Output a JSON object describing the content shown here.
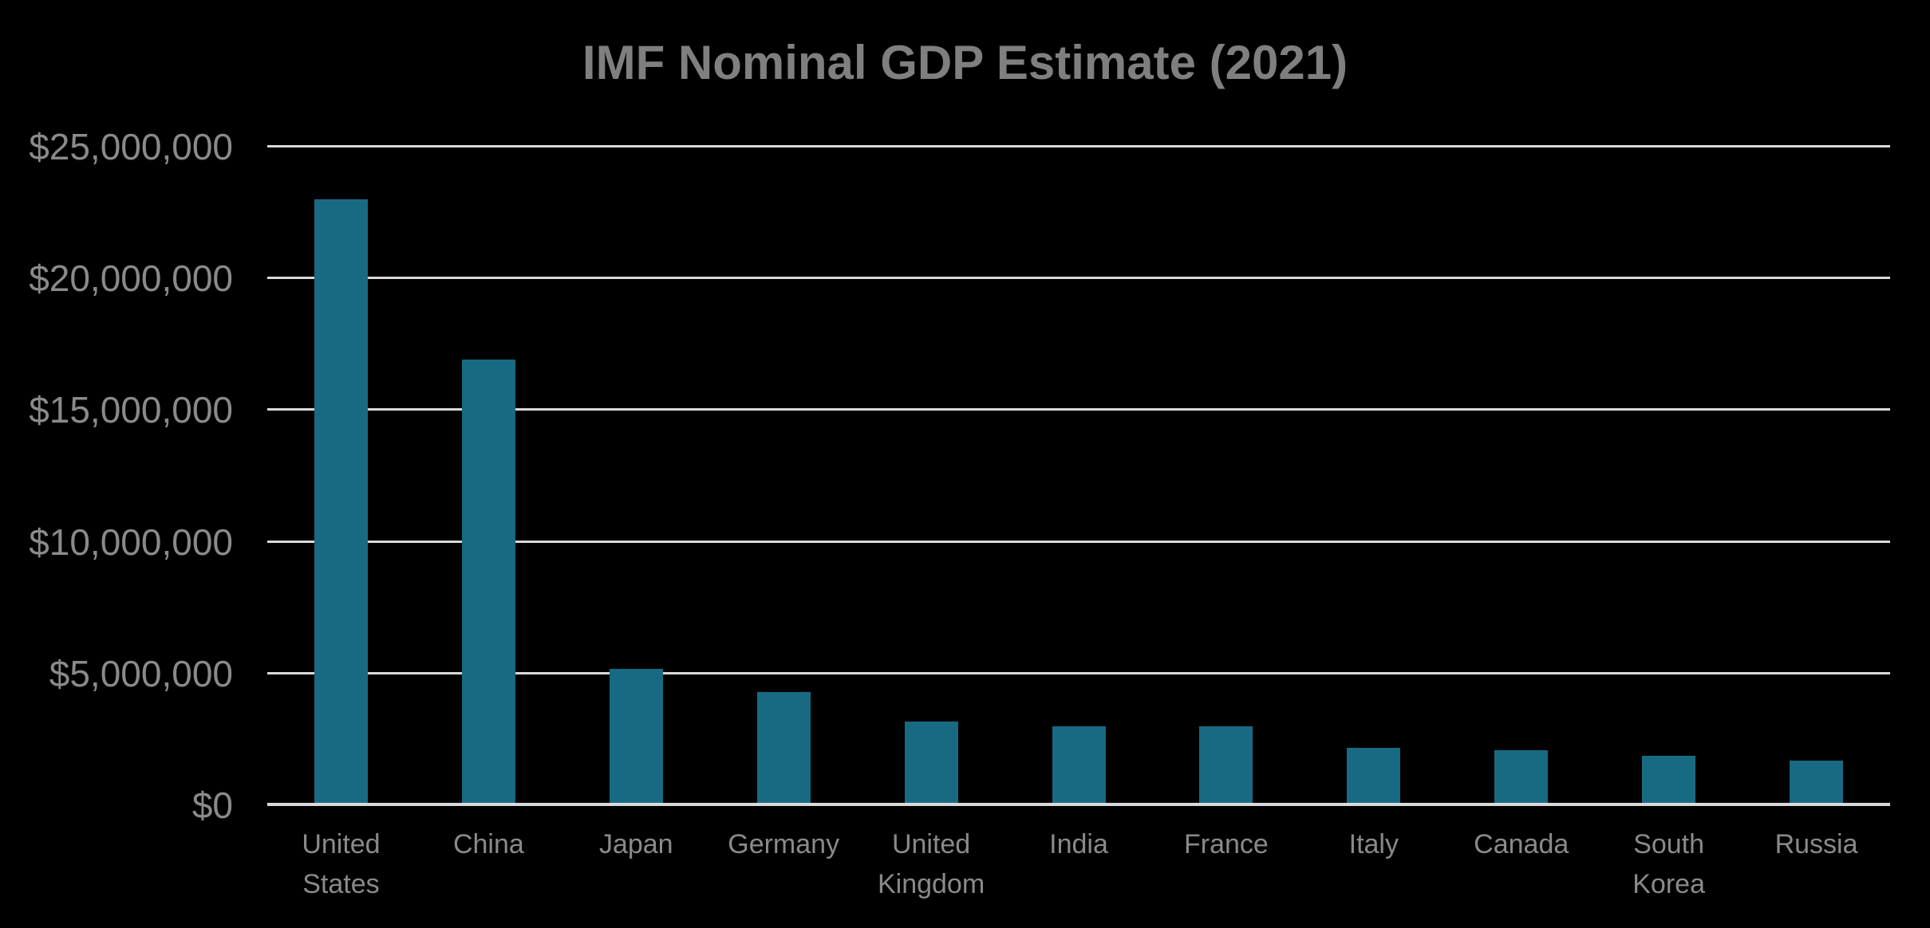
{
  "chart_data": {
    "type": "bar",
    "title": "IMF Nominal GDP Estimate (2021)",
    "categories": [
      "United States",
      "China",
      "Japan",
      "Germany",
      "United Kingdom",
      "India",
      "France",
      "Italy",
      "Canada",
      "South Korea",
      "Russia"
    ],
    "values": [
      22939580,
      16862979,
      5103110,
      4230172,
      3108416,
      2946061,
      2940428,
      2120232,
      2015983,
      1823852,
      1647568
    ],
    "xlabel": "",
    "ylabel": "",
    "ylim": [
      0,
      25000000
    ],
    "y_tick_labels": [
      "$25,000,000",
      "$20,000,000",
      "$15,000,000",
      "$10,000,000",
      "$5,000,000",
      "$0"
    ],
    "y_tick_values": [
      25000000,
      20000000,
      15000000,
      10000000,
      5000000,
      0
    ],
    "grid": true,
    "legend": false,
    "colors": {
      "background": "#000000",
      "bar": "#186a83",
      "gridline": "#d9d9d9",
      "axis_line": "#d9d9d9",
      "title": "#7f7f7f",
      "tick_label": "#8a8a8a"
    }
  }
}
